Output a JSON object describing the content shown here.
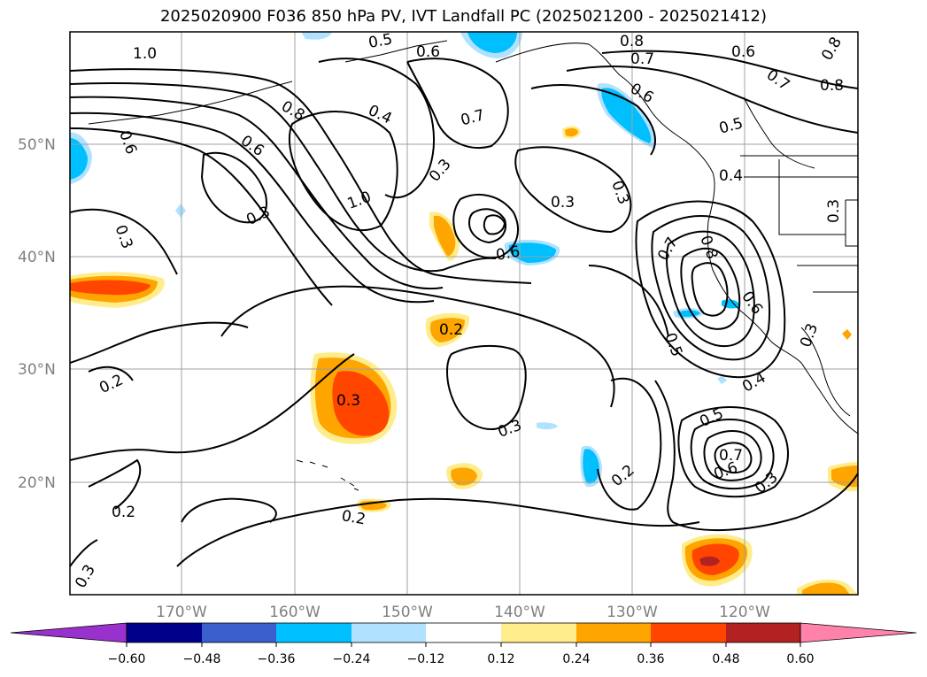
{
  "title": "2025020900 F036 850 hPa PV, IVT Landfall PC (2025021200 - 2025021412)",
  "lat_labels": [
    "50°N",
    "40°N",
    "30°N",
    "20°N"
  ],
  "lon_labels": [
    "170°W",
    "160°W",
    "150°W",
    "140°W",
    "130°W",
    "120°W"
  ],
  "contour_labels": [
    "1.0",
    "0.8",
    "0.6",
    "0.3",
    "0.3",
    "0.6",
    "0.4",
    "0.3",
    "1.0",
    "0.3",
    "0.7",
    "0.6",
    "0.3",
    "0.6",
    "0.7",
    "0.8",
    "0.6",
    "0.5",
    "0.4",
    "0.5",
    "0.7",
    "0.6",
    "0.3",
    "0.3",
    "0.2",
    "0.2",
    "0.3",
    "0.2",
    "0.2",
    "0.2",
    "0.8",
    "0.7",
    "0.6",
    "0.8",
    "0.6",
    "0.7",
    "0.8",
    "0.5",
    "0.4",
    "0.3",
    "0.3",
    "0.3",
    "0.5"
  ],
  "colorbar": {
    "colors": [
      "#9932cc",
      "#00008b",
      "#3a5fcd",
      "#00bfff",
      "#b0e2ff",
      "#ffffff",
      "#ffec8b",
      "#ffa500",
      "#ff4500",
      "#b22222",
      "#ff82ab"
    ],
    "tick_labels": [
      "−0.60",
      "−0.48",
      "−0.36",
      "−0.24",
      "−0.12",
      "0.12",
      "0.24",
      "0.36",
      "0.48",
      "0.60"
    ]
  },
  "legend_colors": {
    "pos_low": "#ffec8b",
    "pos_mid": "#ffa500",
    "pos_high": "#ff4500",
    "pos_top": "#b22222",
    "neg_low": "#b0e2ff",
    "neg_mid": "#00bfff"
  }
}
